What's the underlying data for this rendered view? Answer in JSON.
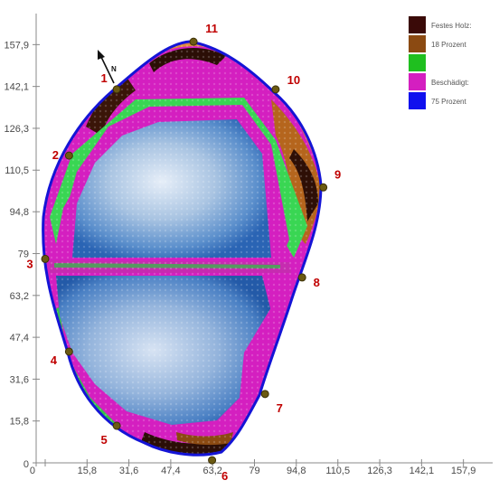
{
  "chart_data": {
    "type": "heatmap",
    "title": "",
    "xlabel": "",
    "ylabel": "",
    "xlim": [
      0,
      165
    ],
    "ylim": [
      0,
      165
    ],
    "x_ticks": [
      "0",
      "15,8",
      "31,6",
      "47,4",
      "63,2",
      "79",
      "94,8",
      "110,5",
      "126,3",
      "142,1",
      "157,9"
    ],
    "y_ticks": [
      "0",
      "15,8",
      "31,6",
      "47,4",
      "63,2",
      "79",
      "94,8",
      "110,5",
      "126,3",
      "142,1",
      "157,9"
    ],
    "grid": false,
    "legend": {
      "placement": "top-right",
      "entries": [
        {
          "label": "Festes Holz:",
          "color": "#3a0a08"
        },
        {
          "label": "18 Prozent",
          "color": "#8b4a12"
        },
        {
          "label": "",
          "color": "#1fbf1f"
        },
        {
          "label": "Beschädigt:",
          "color": "#d41fc0"
        },
        {
          "label": "75 Prozent",
          "color": "#1010ee"
        }
      ]
    },
    "measurement_points": [
      {
        "label": "1",
        "x": 27,
        "y": 141
      },
      {
        "label": "2",
        "x": 9,
        "y": 116
      },
      {
        "label": "3",
        "x": 0,
        "y": 77
      },
      {
        "label": "4",
        "x": 9,
        "y": 42
      },
      {
        "label": "5",
        "x": 27,
        "y": 14
      },
      {
        "label": "6",
        "x": 63,
        "y": 1
      },
      {
        "label": "7",
        "x": 83,
        "y": 26
      },
      {
        "label": "8",
        "x": 97,
        "y": 70
      },
      {
        "label": "9",
        "x": 105,
        "y": 104
      },
      {
        "label": "10",
        "x": 87,
        "y": 141
      },
      {
        "label": "11",
        "x": 56,
        "y": 159
      }
    ],
    "compass_label": "N"
  }
}
